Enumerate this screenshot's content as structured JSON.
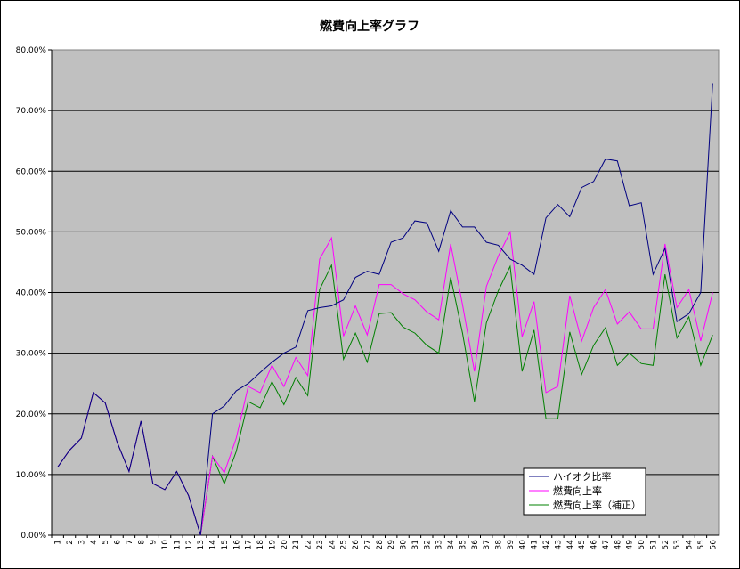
{
  "chart_data": {
    "type": "line",
    "title": "燃費向上率グラフ",
    "xlabel": "",
    "ylabel": "",
    "ylim": [
      0,
      80
    ],
    "y_ticks": [
      "0.00%",
      "10.00%",
      "20.00%",
      "30.00%",
      "40.00%",
      "50.00%",
      "60.00%",
      "70.00%",
      "80.00%"
    ],
    "x": [
      1,
      2,
      3,
      4,
      5,
      6,
      7,
      8,
      9,
      10,
      11,
      12,
      13,
      14,
      15,
      16,
      17,
      18,
      19,
      20,
      21,
      22,
      23,
      24,
      25,
      26,
      27,
      28,
      29,
      30,
      31,
      32,
      33,
      34,
      35,
      36,
      37,
      38,
      39,
      40,
      41,
      42,
      43,
      44,
      45,
      46,
      47,
      48,
      49,
      50,
      51,
      52,
      53,
      54,
      55,
      56
    ],
    "grid": true,
    "legend_position": "bottom-right",
    "colors": {
      "plot_bg": "#c0c0c0",
      "series1": "#000080",
      "series2": "#ff00ff",
      "series3": "#008000"
    },
    "series": [
      {
        "name": "ハイオク比率",
        "color": "#000080",
        "values": [
          11.2,
          14.0,
          16.0,
          23.5,
          21.8,
          15.3,
          10.5,
          18.8,
          8.5,
          7.5,
          10.5,
          6.5,
          0.0,
          20.0,
          21.3,
          23.8,
          25.0,
          26.8,
          28.5,
          30.0,
          31.0,
          37.0,
          37.5,
          37.8,
          38.8,
          42.5,
          43.5,
          43.0,
          48.3,
          49.0,
          51.8,
          51.5,
          46.8,
          53.5,
          50.8,
          50.8,
          48.3,
          47.8,
          45.5,
          44.5,
          43.0,
          52.3,
          54.5,
          52.5,
          57.3,
          58.3,
          62.0,
          61.7,
          54.3,
          54.8,
          43.0,
          47.3,
          35.2,
          36.5,
          40.0,
          74.5
        ]
      },
      {
        "name": "燃費向上率",
        "color": "#ff00ff",
        "values": [
          11.2,
          14.0,
          16.0,
          23.5,
          21.8,
          15.3,
          10.5,
          18.8,
          8.5,
          7.5,
          10.5,
          6.5,
          0.0,
          13.0,
          10.3,
          16.0,
          24.5,
          23.5,
          28.0,
          24.5,
          29.3,
          26.3,
          45.5,
          49.0,
          32.8,
          37.8,
          33.0,
          41.3,
          41.3,
          39.8,
          38.8,
          36.8,
          35.5,
          48.0,
          38.0,
          27.0,
          41.0,
          46.0,
          50.0,
          32.7,
          38.5,
          23.5,
          24.5,
          39.5,
          32.0,
          37.5,
          40.5,
          34.8,
          36.8,
          34.0,
          34.0,
          48.0,
          37.5,
          40.5,
          32.0,
          40.0
        ]
      },
      {
        "name": "燃費向上率（補正）",
        "color": "#008000",
        "values": [
          11.2,
          14.0,
          16.0,
          23.5,
          21.8,
          15.3,
          10.5,
          18.8,
          8.5,
          7.5,
          10.5,
          6.5,
          0.0,
          13.0,
          8.5,
          13.8,
          22.0,
          21.0,
          25.3,
          21.5,
          26.0,
          23.0,
          40.5,
          44.5,
          29.0,
          33.3,
          28.5,
          36.5,
          36.7,
          34.3,
          33.3,
          31.3,
          30.0,
          42.5,
          33.3,
          22.0,
          35.0,
          40.3,
          44.3,
          27.0,
          33.8,
          19.2,
          19.2,
          33.5,
          26.5,
          31.3,
          34.2,
          28.0,
          30.0,
          28.3,
          28.0,
          43.0,
          32.5,
          36.0,
          28.0,
          33.0
        ]
      }
    ]
  }
}
